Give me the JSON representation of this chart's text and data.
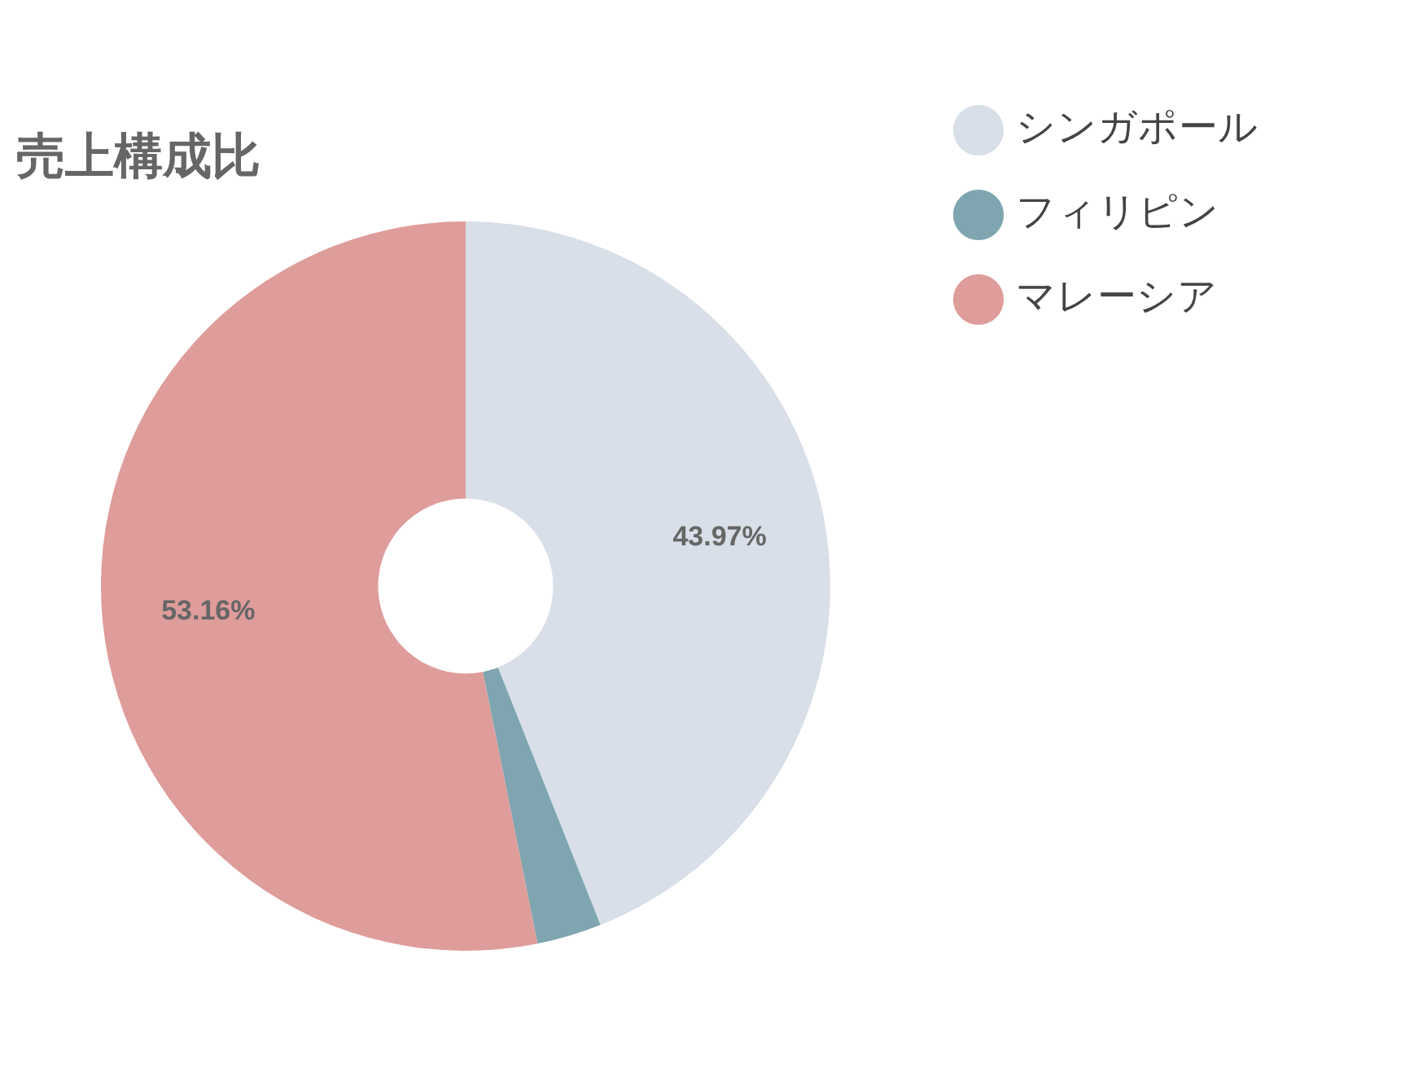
{
  "chart_data": {
    "type": "donut",
    "title": "売上構成比",
    "categories": [
      "シンガポール",
      "フィリピン",
      "マレーシア"
    ],
    "values": [
      43.97,
      2.87,
      53.16
    ],
    "colors": [
      "#d9dfe8",
      "#7fa6b0",
      "#de9c9a"
    ],
    "value_labels": [
      "43.97%",
      null,
      "53.16%"
    ],
    "legend": "top right"
  }
}
